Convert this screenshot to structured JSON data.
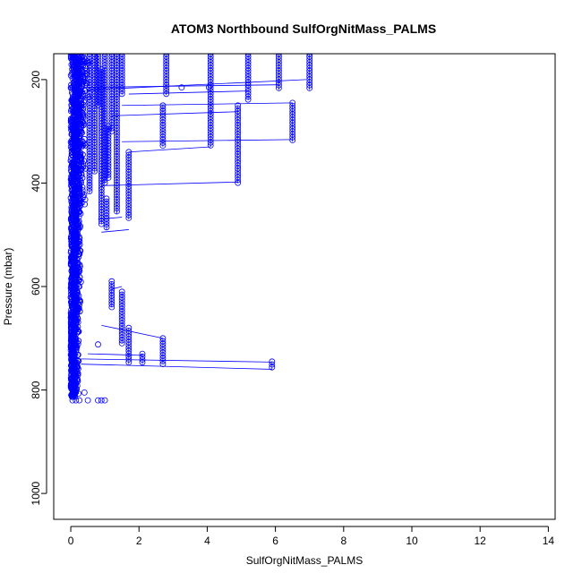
{
  "chart_data": {
    "type": "scatter",
    "title": "ATOM3 Northbound SulfOrgNitMass_PALMS",
    "xlabel": "SulfOrgNitMass_PALMS",
    "ylabel": "Pressure (mbar)",
    "xlim": [
      -0.5,
      14.2
    ],
    "ylim": [
      1050,
      150
    ],
    "y_reversed": true,
    "x_ticks": [
      0,
      2,
      4,
      6,
      8,
      10,
      12,
      14
    ],
    "y_ticks": [
      200,
      400,
      600,
      800,
      1000
    ],
    "grid": false,
    "legend": "none",
    "marker": "open-circle",
    "connect_points": true,
    "color": "#0000ff",
    "columns": [
      {
        "x": 0.55,
        "p_top": 150,
        "p_bottom": 420
      },
      {
        "x": 0.7,
        "p_top": 150,
        "p_bottom": 380
      },
      {
        "x": 0.8,
        "p_top": 150,
        "p_bottom": 250
      },
      {
        "x": 0.9,
        "p_top": 180,
        "p_bottom": 480
      },
      {
        "x": 1.0,
        "p_top": 150,
        "p_bottom": 400
      },
      {
        "x": 1.1,
        "p_top": 290,
        "p_bottom": 390
      },
      {
        "x": 1.2,
        "p_top": 150,
        "p_bottom": 300
      },
      {
        "x": 1.35,
        "p_top": 150,
        "p_bottom": 460
      },
      {
        "x": 1.5,
        "p_top": 150,
        "p_bottom": 230
      },
      {
        "x": 1.7,
        "p_top": 340,
        "p_bottom": 470
      },
      {
        "x": 1.05,
        "p_top": 430,
        "p_bottom": 490
      },
      {
        "x": 1.2,
        "p_top": 590,
        "p_bottom": 640
      },
      {
        "x": 1.5,
        "p_top": 610,
        "p_bottom": 710
      },
      {
        "x": 1.7,
        "p_top": 680,
        "p_bottom": 750
      },
      {
        "x": 2.1,
        "p_top": 730,
        "p_bottom": 750
      },
      {
        "x": 2.7,
        "p_top": 700,
        "p_bottom": 750
      },
      {
        "x": 2.8,
        "p_top": 150,
        "p_bottom": 230
      },
      {
        "x": 2.7,
        "p_top": 250,
        "p_bottom": 330
      },
      {
        "x": 4.1,
        "p_top": 150,
        "p_bottom": 330
      },
      {
        "x": 5.2,
        "p_top": 150,
        "p_bottom": 240
      },
      {
        "x": 4.9,
        "p_top": 250,
        "p_bottom": 400
      },
      {
        "x": 6.1,
        "p_top": 150,
        "p_bottom": 220
      },
      {
        "x": 6.5,
        "p_top": 245,
        "p_bottom": 320
      },
      {
        "x": 7.0,
        "p_top": 150,
        "p_bottom": 220
      },
      {
        "x": 5.9,
        "p_top": 745,
        "p_bottom": 760
      }
    ],
    "bottom_cluster": [
      {
        "x": 0.05,
        "p": 820
      },
      {
        "x": 0.15,
        "p": 820
      },
      {
        "x": 0.25,
        "p": 820
      },
      {
        "x": 0.5,
        "p": 820
      },
      {
        "x": 0.8,
        "p": 820
      },
      {
        "x": 0.9,
        "p": 820
      },
      {
        "x": 1.0,
        "p": 820
      },
      {
        "x": 0.05,
        "p": 810
      },
      {
        "x": 0.4,
        "p": 805
      },
      {
        "x": 0.8,
        "p": 712
      },
      {
        "x": 3.25,
        "p": 215
      },
      {
        "x": 4.05,
        "p": 215
      }
    ],
    "connector_lines": [
      [
        [
          0.4,
          215
        ],
        [
          6.1,
          210
        ]
      ],
      [
        [
          0.5,
          220
        ],
        [
          6.9,
          200
        ]
      ],
      [
        [
          1.7,
          228
        ],
        [
          5.2,
          222
        ]
      ],
      [
        [
          1.5,
          250
        ],
        [
          6.5,
          245
        ]
      ],
      [
        [
          1.2,
          270
        ],
        [
          4.9,
          262
        ]
      ],
      [
        [
          1.5,
          320
        ],
        [
          6.5,
          316
        ]
      ],
      [
        [
          1.7,
          340
        ],
        [
          4.1,
          330
        ]
      ],
      [
        [
          0.9,
          405
        ],
        [
          4.9,
          398
        ]
      ],
      [
        [
          0.8,
          470
        ],
        [
          1.5,
          466
        ]
      ],
      [
        [
          0.9,
          495
        ],
        [
          1.7,
          490
        ]
      ],
      [
        [
          1.2,
          605
        ],
        [
          1.5,
          600
        ]
      ],
      [
        [
          0.9,
          675
        ],
        [
          2.7,
          700
        ]
      ],
      [
        [
          0.5,
          730
        ],
        [
          2.1,
          733
        ]
      ],
      [
        [
          0.3,
          740
        ],
        [
          5.9,
          746
        ]
      ],
      [
        [
          0.3,
          750
        ],
        [
          5.9,
          760
        ]
      ]
    ]
  }
}
